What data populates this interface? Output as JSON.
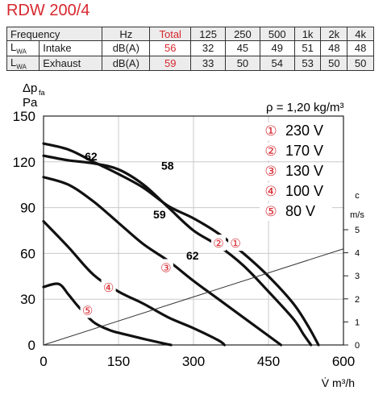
{
  "title": "RDW 200/4",
  "table": {
    "header": {
      "label": "Frequency",
      "unit": "Hz",
      "total": "Total",
      "bands": [
        "125",
        "250",
        "500",
        "1k",
        "2k",
        "4k"
      ]
    },
    "rows": [
      {
        "sym": "L",
        "sub": "WA",
        "name": "Intake",
        "unit": "dB(A)",
        "total": "56",
        "values": [
          "32",
          "45",
          "49",
          "51",
          "48",
          "48"
        ]
      },
      {
        "sym": "L",
        "sub": "WA",
        "name": "Exhaust",
        "unit": "dB(A)",
        "total": "59",
        "values": [
          "33",
          "50",
          "54",
          "53",
          "50",
          "50"
        ]
      }
    ]
  },
  "chart_data": {
    "type": "line",
    "title": "",
    "ylabel": "Δp_fa",
    "yunit": "Pa",
    "xlabel": "V̇ m³/h",
    "xlim": [
      0,
      600
    ],
    "ylim": [
      0,
      150
    ],
    "xticks": [
      "0",
      "150",
      "300",
      "450",
      "600"
    ],
    "yticks": [
      "0",
      "30",
      "60",
      "90",
      "120",
      "150"
    ],
    "y2label": "c",
    "y2unit": "m/s",
    "y2lim": [
      0,
      5
    ],
    "y2ticks": [
      "0",
      "1",
      "2",
      "3",
      "4",
      "5"
    ],
    "grid": true,
    "density": "ρ = 1,20 kg/m³",
    "legend_position": "top-right",
    "legend": [
      {
        "marker": "①",
        "label": "230 V"
      },
      {
        "marker": "②",
        "label": "170 V"
      },
      {
        "marker": "③",
        "label": "130 V"
      },
      {
        "marker": "④",
        "label": "100 V"
      },
      {
        "marker": "⑤",
        "label": "80 V"
      }
    ],
    "series": [
      {
        "marker": "①",
        "x": [
          0,
          50,
          100,
          150,
          200,
          250,
          300,
          350,
          400,
          450,
          500,
          530,
          550
        ],
        "y": [
          132,
          128,
          120,
          112,
          103,
          91,
          83,
          73,
          60,
          45,
          27,
          12,
          0
        ]
      },
      {
        "marker": "②",
        "x": [
          0,
          50,
          100,
          150,
          200,
          250,
          300,
          350,
          400,
          450,
          500,
          520,
          535
        ],
        "y": [
          124,
          121,
          119,
          115,
          105,
          90,
          75,
          65,
          52,
          35,
          17,
          7,
          0
        ]
      },
      {
        "marker": "③",
        "x": [
          0,
          50,
          100,
          150,
          200,
          250,
          300,
          350,
          400,
          450,
          475
        ],
        "y": [
          110,
          105,
          94,
          80,
          66,
          55,
          42,
          30,
          18,
          6,
          0
        ]
      },
      {
        "marker": "④",
        "x": [
          0,
          50,
          100,
          150,
          200,
          250,
          300,
          350,
          362
        ],
        "y": [
          81,
          64,
          46,
          35,
          27,
          18,
          11,
          3,
          0
        ]
      },
      {
        "marker": "⑤",
        "x": [
          0,
          30,
          50,
          70,
          100,
          130,
          150,
          200,
          240,
          255
        ],
        "y": [
          38,
          40,
          33,
          25,
          15,
          10,
          8,
          4,
          1,
          0
        ]
      },
      {
        "name": "c",
        "x": [
          0,
          600
        ],
        "y": [
          0,
          63
        ]
      }
    ],
    "annotations": [
      {
        "text": "62",
        "x": 95,
        "y": 121
      },
      {
        "text": "58",
        "x": 248,
        "y": 115
      },
      {
        "text": "59",
        "x": 232,
        "y": 83
      },
      {
        "text": "62",
        "x": 298,
        "y": 56
      }
    ],
    "curve_markers": [
      {
        "text": "①",
        "x": 384,
        "y": 67
      },
      {
        "text": "②",
        "x": 350,
        "y": 67
      },
      {
        "text": "③",
        "x": 245,
        "y": 51
      },
      {
        "text": "④",
        "x": 130,
        "y": 38
      },
      {
        "text": "⑤",
        "x": 88,
        "y": 23
      }
    ]
  }
}
